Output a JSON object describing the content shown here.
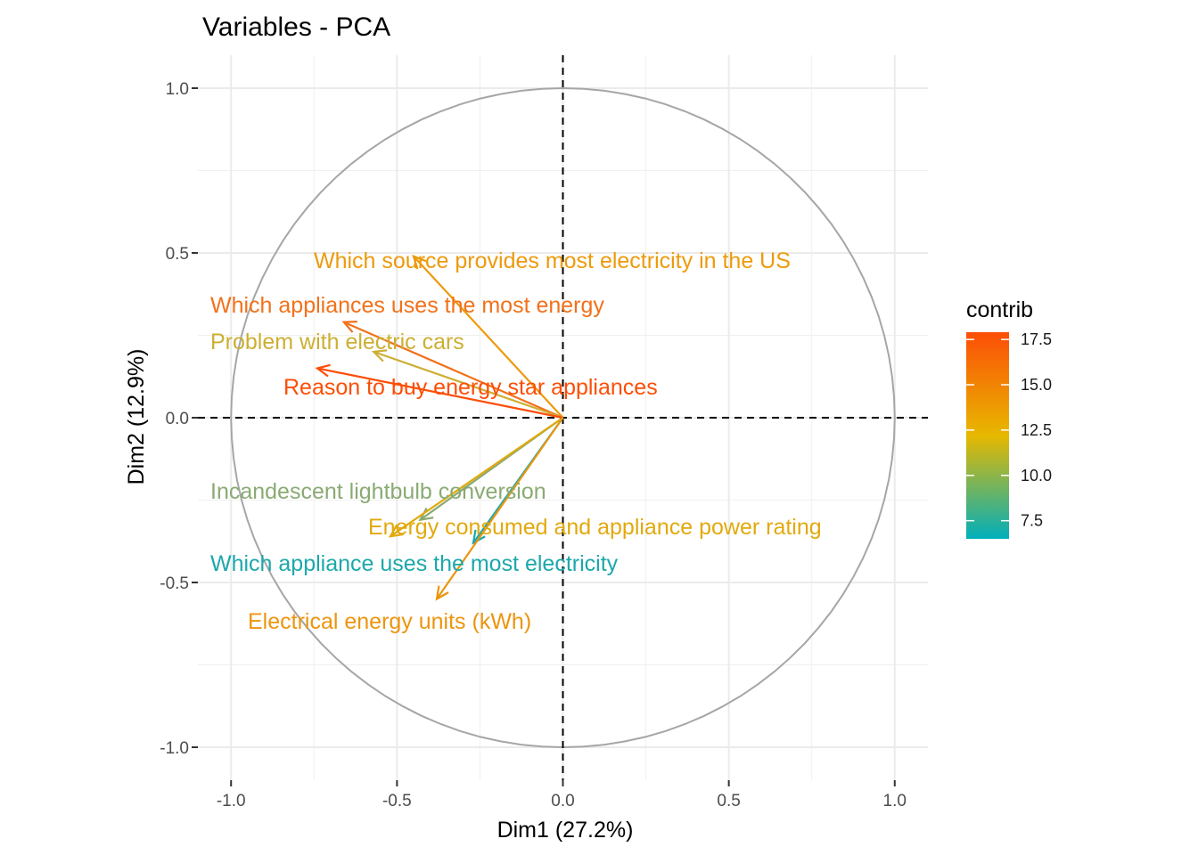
{
  "chart_data": {
    "type": "scatter",
    "subtype": "pca-variable-correlation-circle",
    "title": "Variables - PCA",
    "xlabel": "Dim1 (27.2%)",
    "ylabel": "Dim2 (12.9%)",
    "xlim": [
      -1.1,
      1.1
    ],
    "ylim": [
      -1.1,
      1.1
    ],
    "x_ticks": [
      -1.0,
      -0.5,
      0.0,
      0.5,
      1.0
    ],
    "x_tick_labels": [
      "-1.0",
      "-0.5",
      "0.0",
      "0.5",
      "1.0"
    ],
    "y_ticks": [
      -1.0,
      -0.5,
      0.0,
      0.5,
      1.0
    ],
    "y_tick_labels": [
      "-1.0",
      "-0.5",
      "0.0",
      "0.5",
      "1.0"
    ],
    "grid": true,
    "unit_circle": true,
    "reference_lines": [
      {
        "axis": "x",
        "value": 0,
        "style": "dashed"
      },
      {
        "axis": "y",
        "value": 0,
        "style": "dashed"
      }
    ],
    "legend": {
      "title": "contrib",
      "placement": "right",
      "type": "colorbar",
      "range": [
        6.5,
        17.9
      ],
      "breaks": [
        7.5,
        10.0,
        12.5,
        15.0,
        17.5
      ],
      "break_labels": [
        "7.5",
        "10.0",
        "12.5",
        "15.0",
        "17.5"
      ],
      "gradient": [
        "#00AFBB",
        "#E7B800",
        "#FC4E07"
      ]
    },
    "variables": [
      {
        "name": "Which source provides most electricity in the US",
        "x": -0.45,
        "y": 0.49,
        "contrib": 14.2,
        "color": "#ED9A0C"
      },
      {
        "name": "Which appliances uses the most energy",
        "x": -0.66,
        "y": 0.29,
        "contrib": 16.2,
        "color": "#F2711A"
      },
      {
        "name": "Problem with electric cars",
        "x": -0.57,
        "y": 0.2,
        "contrib": 11.5,
        "color": "#CCAF33"
      },
      {
        "name": "Reason to buy energy star appliances",
        "x": -0.74,
        "y": 0.15,
        "contrib": 17.5,
        "color": "#FC4E07"
      },
      {
        "name": "Incandescent lightbulb conversion",
        "x": -0.43,
        "y": -0.31,
        "contrib": 9.3,
        "color": "#8AAA73"
      },
      {
        "name": "Energy consumed and appliance power rating",
        "x": -0.52,
        "y": -0.36,
        "contrib": 12.6,
        "color": "#E2A90D"
      },
      {
        "name": "Which appliance uses the most electricity",
        "x": -0.27,
        "y": -0.38,
        "contrib": 6.8,
        "color": "#1CA8AB"
      },
      {
        "name": "Electrical energy units (kWh)",
        "x": -0.38,
        "y": -0.55,
        "contrib": 14.0,
        "color": "#EC950E"
      }
    ]
  }
}
